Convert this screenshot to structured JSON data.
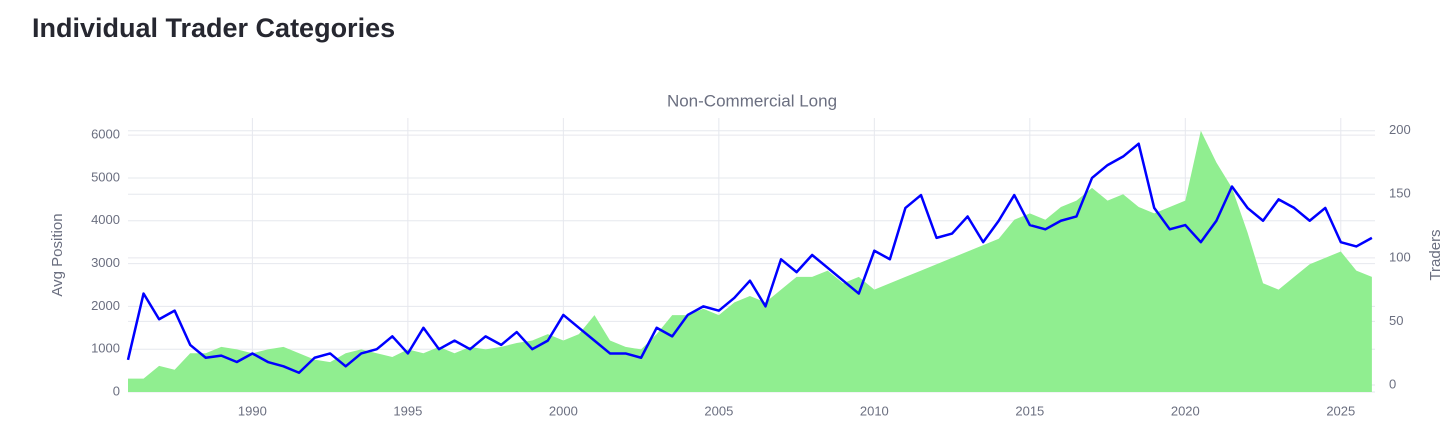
{
  "header": {
    "title": "Individual Trader Categories"
  },
  "chart_data": {
    "type": "line",
    "title": "Non-Commercial Long",
    "ylabel": "Avg Position",
    "y2label": "Traders",
    "x": [
      1986,
      1986.5,
      1987,
      1987.5,
      1988,
      1988.5,
      1989,
      1989.5,
      1990,
      1990.5,
      1991,
      1991.5,
      1992,
      1992.5,
      1993,
      1993.5,
      1994,
      1994.5,
      1995,
      1995.5,
      1996,
      1996.5,
      1997,
      1997.5,
      1998,
      1998.5,
      1999,
      1999.5,
      2000,
      2000.5,
      2001,
      2001.5,
      2002,
      2002.5,
      2003,
      2003.5,
      2004,
      2004.5,
      2005,
      2005.5,
      2006,
      2006.5,
      2007,
      2007.5,
      2008,
      2008.5,
      2009,
      2009.5,
      2010,
      2010.5,
      2011,
      2011.5,
      2012,
      2012.5,
      2013,
      2013.5,
      2014,
      2014.5,
      2015,
      2015.5,
      2016,
      2016.5,
      2017,
      2017.5,
      2018,
      2018.5,
      2019,
      2019.5,
      2020,
      2020.5,
      2021,
      2021.5,
      2022,
      2022.5,
      2023,
      2023.5,
      2024,
      2024.5,
      2025,
      2025.5,
      2026
    ],
    "series": [
      {
        "name": "Avg Position",
        "type": "line",
        "color": "#0000ff",
        "values": [
          750,
          2300,
          1700,
          1900,
          1100,
          800,
          850,
          700,
          900,
          700,
          600,
          450,
          800,
          900,
          600,
          900,
          1000,
          1300,
          900,
          1500,
          1000,
          1200,
          1000,
          1300,
          1100,
          1400,
          1000,
          1200,
          1800,
          1500,
          1200,
          900,
          900,
          800,
          1500,
          1300,
          1800,
          2000,
          1900,
          2200,
          2600,
          2000,
          3100,
          2800,
          3200,
          2900,
          2600,
          2300,
          3300,
          3100,
          4300,
          4600,
          3600,
          3700,
          4100,
          3500,
          4000,
          4600,
          3900,
          3800,
          4000,
          4100,
          5000,
          5300,
          5500,
          5800,
          4300,
          3800,
          3900,
          3500,
          4000,
          4800,
          4300,
          4000,
          4500,
          4300,
          4000,
          4300,
          3500,
          3400,
          3600
        ]
      },
      {
        "name": "Traders",
        "type": "area",
        "axis": "y2",
        "color": "#90ee90",
        "values": [
          5,
          5,
          15,
          12,
          25,
          25,
          30,
          28,
          25,
          28,
          30,
          25,
          20,
          18,
          25,
          28,
          25,
          22,
          28,
          25,
          30,
          25,
          30,
          28,
          30,
          33,
          35,
          40,
          35,
          40,
          55,
          35,
          30,
          28,
          40,
          55,
          55,
          60,
          55,
          65,
          70,
          65,
          75,
          85,
          85,
          90,
          80,
          85,
          75,
          80,
          85,
          90,
          95,
          100,
          105,
          110,
          115,
          130,
          135,
          130,
          140,
          145,
          155,
          145,
          150,
          140,
          135,
          140,
          145,
          200,
          175,
          155,
          120,
          80,
          75,
          85,
          95,
          100,
          105,
          90,
          85
        ]
      }
    ],
    "xlim": [
      1986,
      2026.1
    ],
    "xticks": [
      1990,
      1995,
      2000,
      2005,
      2010,
      2015,
      2020,
      2025
    ],
    "ylim": [
      0,
      6400
    ],
    "yticks": [
      0,
      1000,
      2000,
      3000,
      4000,
      5000,
      6000
    ],
    "y2lim": [
      -5.5,
      210
    ],
    "y2ticks": [
      0,
      50,
      100,
      150,
      200
    ],
    "grid": true
  }
}
